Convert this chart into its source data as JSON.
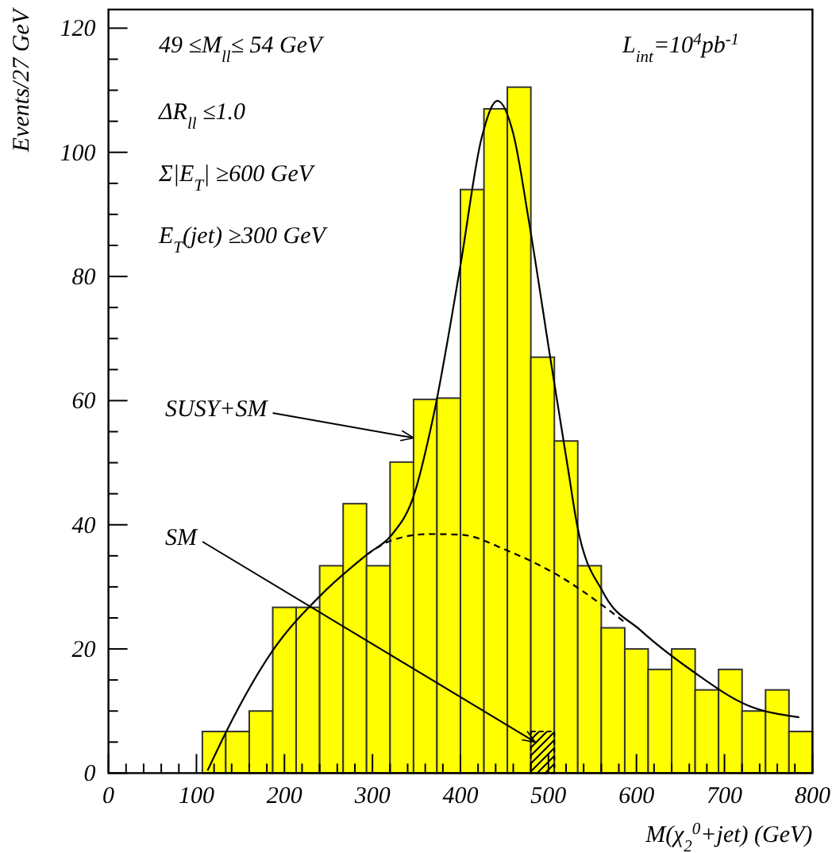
{
  "chart_data": {
    "type": "histogram",
    "xlabel": "M(χ$_{2}$$^{0}$+jet) (GeV)",
    "ylabel": "Events/27 GeV",
    "bins": [
      106.7,
      133.3,
      160,
      186.7,
      213.3,
      240,
      266.7,
      293.3,
      320,
      346.7,
      373.3,
      400,
      426.7,
      453.3,
      480,
      506.7,
      533.3,
      560,
      586.7,
      613.3,
      640,
      666.7,
      693.3,
      720,
      746.7,
      773.3,
      800
    ],
    "series": [
      {
        "color": "#ffff00",
        "values": [
          6.7,
          6.7,
          10,
          26.7,
          26.7,
          33.4,
          43.4,
          33.4,
          50.1,
          60.2,
          60.4,
          94,
          107,
          110.5,
          67,
          53.5,
          33.4,
          23.4,
          20,
          16.7,
          20,
          13.4,
          16.7,
          10,
          13.4,
          6.7
        ]
      },
      {
        "color": "#000000",
        "values": [
          0,
          0,
          0,
          0,
          0,
          0,
          0,
          0,
          0,
          0,
          0,
          0,
          0,
          0,
          6.7,
          0,
          0,
          0,
          0,
          0,
          0,
          0,
          0,
          0,
          0,
          0
        ]
      },
      {
        "type": "line",
        "color": "#000000",
        "x": [
          112.6,
          135,
          186,
          243.7,
          293.7,
          322,
          346,
          370,
          400,
          424,
          442,
          460,
          478,
          502.5,
          521.7,
          532.5,
          562.6,
          604.7,
          665,
          725,
          785
        ],
        "values": [
          0.4,
          7,
          19.6,
          29,
          35.2,
          38.4,
          44.3,
          58,
          81.8,
          102.3,
          108.3,
          103,
          88.7,
          66.5,
          49.5,
          40,
          29,
          23,
          16.3,
          11,
          9
        ]
      },
      {
        "type": "line",
        "color": "#000000",
        "line_style": "dashed",
        "x": [
          293.7,
          322,
          364,
          400,
          454,
          514,
          562.6,
          586.7
        ],
        "values": [
          35.2,
          37.5,
          38.5,
          38.4,
          35.8,
          31.6,
          26.9,
          24.3
        ]
      }
    ],
    "xlim": [
      0,
      800
    ],
    "xticks": [
      0,
      {
        "value": 20,
        "label": null
      },
      {
        "value": 40,
        "label": null
      },
      {
        "value": 60,
        "label": null
      },
      {
        "value": 80,
        "label": null
      },
      100,
      {
        "value": 120,
        "label": null
      },
      {
        "value": 140,
        "label": null
      },
      {
        "value": 160,
        "label": null
      },
      {
        "value": 180,
        "label": null
      },
      200,
      {
        "value": 220,
        "label": null
      },
      {
        "value": 240,
        "label": null
      },
      {
        "value": 260,
        "label": null
      },
      {
        "value": 280,
        "label": null
      },
      300,
      {
        "value": 320,
        "label": null
      },
      {
        "value": 340,
        "label": null
      },
      {
        "value": 360,
        "label": null
      },
      {
        "value": 380,
        "label": null
      },
      400,
      {
        "value": 420,
        "label": null
      },
      {
        "value": 440,
        "label": null
      },
      {
        "value": 460,
        "label": null
      },
      {
        "value": 480,
        "label": null
      },
      500,
      {
        "value": 520,
        "label": null
      },
      {
        "value": 540,
        "label": null
      },
      {
        "value": 560,
        "label": null
      },
      {
        "value": 580,
        "label": null
      },
      600,
      {
        "value": 620,
        "label": null
      },
      {
        "value": 640,
        "label": null
      },
      {
        "value": 660,
        "label": null
      },
      {
        "value": 680,
        "label": null
      },
      700,
      {
        "value": 720,
        "label": null
      },
      {
        "value": 740,
        "label": null
      },
      {
        "value": 760,
        "label": null
      },
      {
        "value": 780,
        "label": null
      },
      800
    ],
    "ylim": [
      0,
      123
    ],
    "yticks": [
      0,
      {
        "value": 5,
        "label": null
      },
      {
        "value": 10,
        "label": null
      },
      {
        "value": 15,
        "label": null
      },
      20,
      {
        "value": 25,
        "label": null
      },
      {
        "value": 30,
        "label": null
      },
      {
        "value": 35,
        "label": null
      },
      40,
      {
        "value": 45,
        "label": null
      },
      {
        "value": 50,
        "label": null
      },
      {
        "value": 55,
        "label": null
      },
      60,
      {
        "value": 65,
        "label": null
      },
      {
        "value": 70,
        "label": null
      },
      {
        "value": 75,
        "label": null
      },
      80,
      {
        "value": 85,
        "label": null
      },
      {
        "value": 90,
        "label": null
      },
      {
        "value": 95,
        "label": null
      },
      100,
      {
        "value": 105,
        "label": null
      },
      {
        "value": 110,
        "label": null
      },
      {
        "value": 115,
        "label": null
      },
      120
    ],
    "annotations": [
      "49 ≤M$_{ll}$≤ 54 GeV",
      "ΔR$_{ll}$ ≤1.0",
      "Σ|E$_{T}$| ≥600 GeV",
      "E$_{T}$(jet) ≥300 GeV",
      "L$_{int}$=10$^{4}$pb$^{-1}$",
      {
        "text": "SUSY+SM",
        "x": 346.7,
        "y": 54
      },
      {
        "text": "SM",
        "x": 485,
        "y": 5
      }
    ]
  }
}
